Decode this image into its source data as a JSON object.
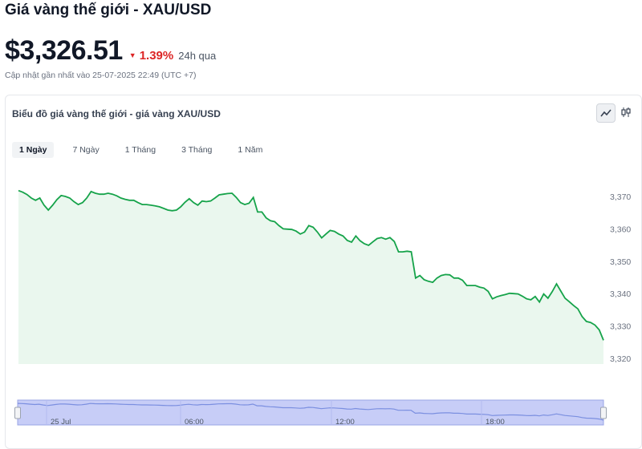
{
  "page": {
    "title": "Giá vàng thế giới - XAU/USD",
    "price": "$3,326.51",
    "change": "1.39%",
    "change_period": "24h qua",
    "updated": "Cập nhật gần nhất vào 25-07-2025 22:49 (UTC +7)"
  },
  "card": {
    "title": "Biểu đồ giá vàng thế giới - giá vàng XAU/USD",
    "tabs": [
      "1 Ngày",
      "7 Ngày",
      "1 Tháng",
      "3 Tháng",
      "1 Năm"
    ],
    "active_tab": 0,
    "line_icon": "line-chart-icon",
    "candle_icon": "candlestick-icon"
  },
  "colors": {
    "line": "#16a34a",
    "area": "#eaf7ee",
    "down": "#dc2626",
    "nav": "#c7cdf7",
    "nav_line": "#7b8fe0"
  },
  "chart_data": {
    "type": "area",
    "title": "",
    "xlabel": "",
    "ylabel": "",
    "ylim": [
      3317,
      3372
    ],
    "yticks": [
      3370,
      3360,
      3350,
      3340,
      3330,
      3320
    ],
    "navigator_labels": [
      "25 Jul",
      "06:00",
      "12:00",
      "18:00"
    ],
    "values": [
      3371.8,
      3371.3,
      3370.6,
      3369.5,
      3368.8,
      3369.5,
      3367.3,
      3365.8,
      3367.3,
      3369,
      3370.3,
      3370,
      3369.5,
      3368.4,
      3367.5,
      3368.1,
      3369.5,
      3371.5,
      3371,
      3370.7,
      3370.7,
      3371,
      3370.7,
      3370.2,
      3369.5,
      3369.1,
      3368.8,
      3368.8,
      3368.1,
      3367.5,
      3367.5,
      3367.3,
      3367.1,
      3366.8,
      3366.3,
      3365.8,
      3365.6,
      3365.8,
      3366.8,
      3368.2,
      3369.3,
      3368.1,
      3367.3,
      3368.6,
      3368.4,
      3368.6,
      3369.5,
      3370.5,
      3370.7,
      3370.9,
      3371,
      3369.7,
      3368.1,
      3367.5,
      3367.9,
      3369.7,
      3365.2,
      3365.2,
      3363.4,
      3362.5,
      3362.2,
      3361,
      3360,
      3359.9,
      3359.8,
      3359.3,
      3358.4,
      3359,
      3361,
      3360.5,
      3359,
      3357.2,
      3358.4,
      3359.5,
      3359.2,
      3358.4,
      3357.8,
      3356.4,
      3355.9,
      3357.8,
      3356.3,
      3355.4,
      3354.9,
      3356,
      3357,
      3357.3,
      3356.8,
      3357.3,
      3356.1,
      3352.9,
      3352.9,
      3353.1,
      3352.9,
      3344.8,
      3345.6,
      3344.3,
      3343.8,
      3343.5,
      3344.8,
      3345.6,
      3345.9,
      3345.8,
      3344.8,
      3344.8,
      3344.1,
      3342.5,
      3342.5,
      3342.5,
      3342,
      3341.7,
      3340.7,
      3338.4,
      3339,
      3339.4,
      3339.7,
      3340.1,
      3340,
      3339.9,
      3339.2,
      3338.4,
      3338.1,
      3339.1,
      3337.4,
      3339.9,
      3338.6,
      3340.6,
      3343,
      3340.8,
      3338.6,
      3337.5,
      3336.3,
      3335.3,
      3332.9,
      3331.4,
      3331.1,
      3330.3,
      3328.8,
      3325.6
    ]
  }
}
